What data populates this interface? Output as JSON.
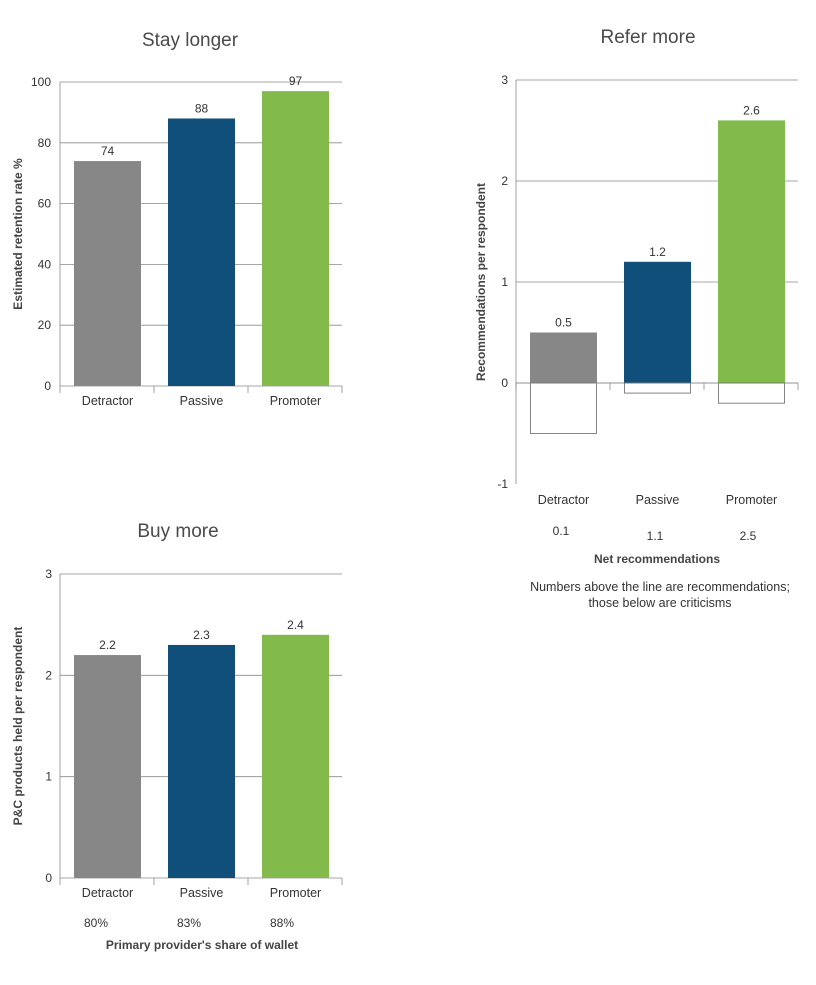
{
  "chart_data": [
    {
      "type": "bar",
      "title": "Stay longer",
      "ylabel": "Estimated retention rate %",
      "categories": [
        "Detractor",
        "Passive",
        "Promoter"
      ],
      "values": [
        74,
        88,
        97
      ],
      "data_labels": [
        "74",
        "88",
        "97"
      ],
      "yticks": [
        "0",
        "20",
        "40",
        "60",
        "80",
        "100"
      ],
      "ylim": [
        0,
        100
      ],
      "colors": [
        "#878787",
        "#114f7b",
        "#82bb4c"
      ],
      "grid": true
    },
    {
      "type": "bar",
      "title": "Refer more",
      "ylabel": "Recommendations per respondent",
      "xlabel": "Net recommendations",
      "categories": [
        "Detractor",
        "Passive",
        "Promoter"
      ],
      "values": [
        0.5,
        1.2,
        2.6
      ],
      "data_labels": [
        "0.5",
        "1.2",
        "2.6"
      ],
      "criticisms": [
        -0.5,
        -0.1,
        -0.2
      ],
      "net_values": [
        "0.1",
        "1.1",
        "2.5"
      ],
      "yticks": [
        "-1",
        "0",
        "1",
        "2",
        "3"
      ],
      "ylim": [
        -1,
        3
      ],
      "note": [
        "Numbers above the line are recommendations;",
        "those below are criticisms"
      ],
      "colors": [
        "#878787",
        "#114f7b",
        "#82bb4c"
      ],
      "grid": true
    },
    {
      "type": "bar",
      "title": "Buy more",
      "ylabel": "P&C products held per respondent",
      "xlabel": "Primary provider's share of wallet",
      "categories": [
        "Detractor",
        "Passive",
        "Promoter"
      ],
      "values": [
        2.2,
        2.3,
        2.4
      ],
      "data_labels": [
        "2.2",
        "2.3",
        "2.4"
      ],
      "share_of_wallet": [
        "80%",
        "83%",
        "88%"
      ],
      "yticks": [
        "0",
        "1",
        "2",
        "3"
      ],
      "ylim": [
        0,
        3
      ],
      "colors": [
        "#878787",
        "#114f7b",
        "#82bb4c"
      ],
      "grid": true
    }
  ]
}
